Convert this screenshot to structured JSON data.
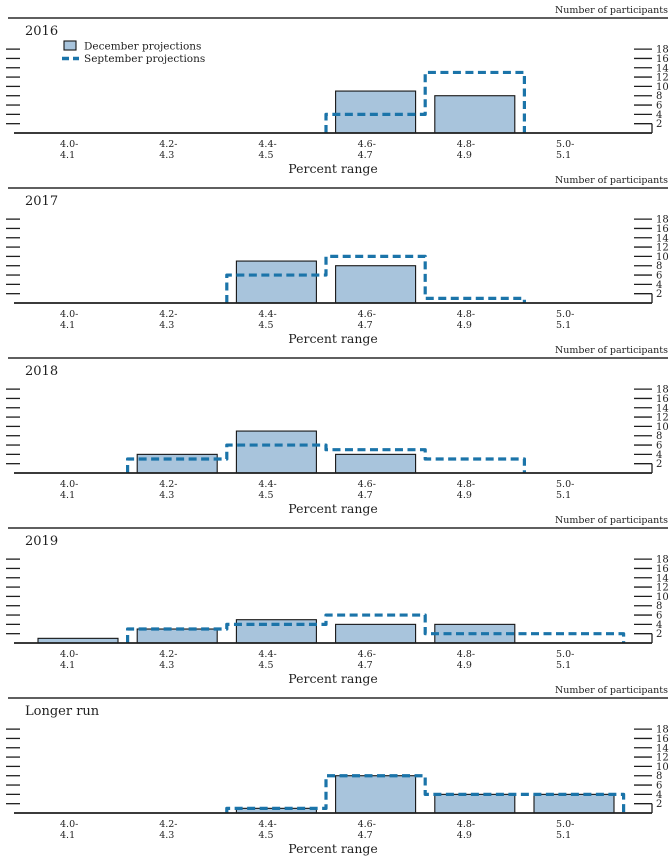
{
  "figure": {
    "right_axis_label": "Number of participants",
    "x_axis_label": "Percent range",
    "legend": {
      "items": [
        {
          "label": "December projections",
          "swatch": "filled-bar"
        },
        {
          "label": "September projections",
          "swatch": "dashed-line"
        }
      ]
    }
  },
  "colors": {
    "bar_fill": "#a8c4dc",
    "bar_stroke": "#151515",
    "dash_line": "#1b74a9",
    "axis": "#1f1f1f",
    "rule": "#2a2a2a"
  },
  "chart_data": [
    {
      "type": "bar",
      "title": "2016",
      "categories": [
        [
          "4.0-",
          "4.1"
        ],
        [
          "4.2-",
          "4.3"
        ],
        [
          "4.4-",
          "4.5"
        ],
        [
          "4.6-",
          "4.7"
        ],
        [
          "4.8-",
          "4.9"
        ],
        [
          "5.0-",
          "5.1"
        ]
      ],
      "xlabel": "Percent range",
      "ylabel": "Number of participants",
      "ylim": [
        0,
        19
      ],
      "yticks": [
        2,
        4,
        6,
        8,
        10,
        12,
        14,
        16,
        18
      ],
      "grid": false,
      "legend_position": "top-left",
      "series": [
        {
          "name": "December projections",
          "style": "bar",
          "values": [
            0,
            0,
            0,
            9,
            8,
            0
          ]
        },
        {
          "name": "September projections",
          "style": "dashed-step",
          "values": [
            null,
            null,
            null,
            4,
            13,
            null
          ]
        }
      ]
    },
    {
      "type": "bar",
      "title": "2017",
      "categories": [
        [
          "4.0-",
          "4.1"
        ],
        [
          "4.2-",
          "4.3"
        ],
        [
          "4.4-",
          "4.5"
        ],
        [
          "4.6-",
          "4.7"
        ],
        [
          "4.8-",
          "4.9"
        ],
        [
          "5.0-",
          "5.1"
        ]
      ],
      "xlabel": "Percent range",
      "ylabel": "Number of participants",
      "ylim": [
        0,
        19
      ],
      "yticks": [
        2,
        4,
        6,
        8,
        10,
        12,
        14,
        16,
        18
      ],
      "grid": false,
      "series": [
        {
          "name": "December projections",
          "style": "bar",
          "values": [
            0,
            0,
            9,
            8,
            0,
            0
          ]
        },
        {
          "name": "September projections",
          "style": "dashed-step",
          "values": [
            null,
            null,
            6,
            10,
            1,
            null
          ]
        }
      ]
    },
    {
      "type": "bar",
      "title": "2018",
      "categories": [
        [
          "4.0-",
          "4.1"
        ],
        [
          "4.2-",
          "4.3"
        ],
        [
          "4.4-",
          "4.5"
        ],
        [
          "4.6-",
          "4.7"
        ],
        [
          "4.8-",
          "4.9"
        ],
        [
          "5.0-",
          "5.1"
        ]
      ],
      "xlabel": "Percent range",
      "ylabel": "Number of participants",
      "ylim": [
        0,
        19
      ],
      "yticks": [
        2,
        4,
        6,
        8,
        10,
        12,
        14,
        16,
        18
      ],
      "grid": false,
      "series": [
        {
          "name": "December projections",
          "style": "bar",
          "values": [
            0,
            4,
            9,
            4,
            0,
            0
          ]
        },
        {
          "name": "September projections",
          "style": "dashed-step",
          "values": [
            null,
            3,
            6,
            5,
            3,
            null
          ]
        }
      ]
    },
    {
      "type": "bar",
      "title": "2019",
      "categories": [
        [
          "4.0-",
          "4.1"
        ],
        [
          "4.2-",
          "4.3"
        ],
        [
          "4.4-",
          "4.5"
        ],
        [
          "4.6-",
          "4.7"
        ],
        [
          "4.8-",
          "4.9"
        ],
        [
          "5.0-",
          "5.1"
        ]
      ],
      "xlabel": "Percent range",
      "ylabel": "Number of participants",
      "ylim": [
        0,
        19
      ],
      "yticks": [
        2,
        4,
        6,
        8,
        10,
        12,
        14,
        16,
        18
      ],
      "grid": false,
      "series": [
        {
          "name": "December projections",
          "style": "bar",
          "values": [
            1,
            3,
            5,
            4,
            4,
            0
          ]
        },
        {
          "name": "September projections",
          "style": "dashed-step",
          "values": [
            null,
            3,
            4,
            6,
            2,
            2
          ]
        }
      ]
    },
    {
      "type": "bar",
      "title": "Longer run",
      "categories": [
        [
          "4.0-",
          "4.1"
        ],
        [
          "4.2-",
          "4.3"
        ],
        [
          "4.4-",
          "4.5"
        ],
        [
          "4.6-",
          "4.7"
        ],
        [
          "4.8-",
          "4.9"
        ],
        [
          "5.0-",
          "5.1"
        ]
      ],
      "xlabel": "Percent range",
      "ylabel": "Number of participants",
      "ylim": [
        0,
        19
      ],
      "yticks": [
        2,
        4,
        6,
        8,
        10,
        12,
        14,
        16,
        18
      ],
      "grid": false,
      "series": [
        {
          "name": "December projections",
          "style": "bar",
          "values": [
            0,
            0,
            1,
            8,
            4,
            4
          ]
        },
        {
          "name": "September projections",
          "style": "dashed-step",
          "values": [
            null,
            null,
            1,
            8,
            4,
            4
          ]
        }
      ]
    }
  ]
}
